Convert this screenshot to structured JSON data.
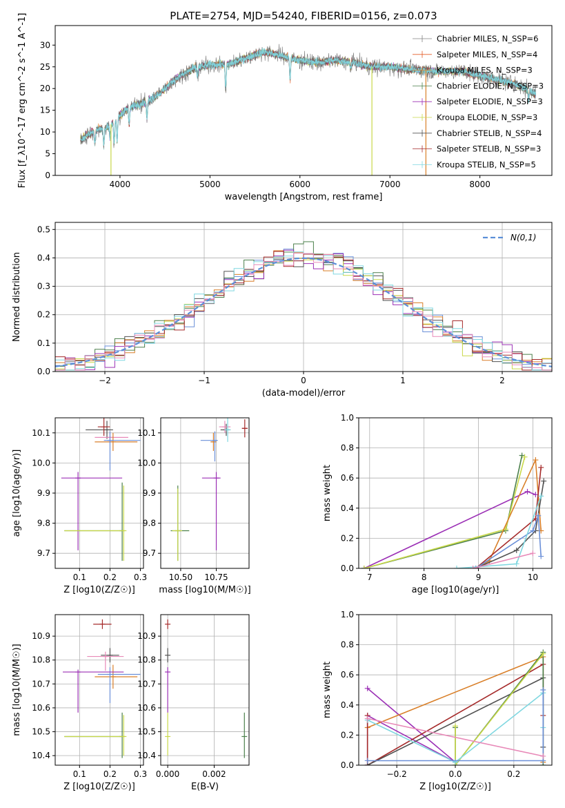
{
  "title": "PLATE=2754, MJD=54240, FIBERID=0156, z=0.073",
  "colors": [
    "#1f77b4",
    "#e35a24",
    "#d97f28",
    "#4a7f4a",
    "#9b2fb5",
    "#d4e050",
    "#505050",
    "#a52a2a",
    "#7fd7e0",
    "#e889b8",
    "#2a8f2a",
    "#6a8fd8"
  ],
  "chart_data": [
    {
      "id": "spectrum",
      "type": "line",
      "xlabel": "wavelength [Angstrom, rest frame]",
      "ylabel": "Flux [f_λ10^-17 erg cm^-2 s^-1 A^-1]",
      "xlim": [
        3280,
        8800
      ],
      "ylim": [
        0,
        34.5
      ],
      "xticks": [
        4000,
        5000,
        6000,
        7000,
        8000
      ],
      "yticks": [
        0,
        5,
        10,
        15,
        20,
        25,
        30
      ],
      "continuum": [
        [
          3550,
          8
        ],
        [
          3650,
          9.5
        ],
        [
          3750,
          10.5
        ],
        [
          3850,
          11
        ],
        [
          3950,
          12.5
        ],
        [
          4050,
          15
        ],
        [
          4150,
          16
        ],
        [
          4300,
          17
        ],
        [
          4450,
          19
        ],
        [
          4600,
          22
        ],
        [
          4800,
          24.5
        ],
        [
          5000,
          25.5
        ],
        [
          5200,
          25.5
        ],
        [
          5400,
          27
        ],
        [
          5600,
          28.5
        ],
        [
          5800,
          27.5
        ],
        [
          6000,
          26.5
        ],
        [
          6200,
          26
        ],
        [
          6400,
          26.5
        ],
        [
          6600,
          26
        ],
        [
          6800,
          25
        ],
        [
          7000,
          25
        ],
        [
          7200,
          24.5
        ],
        [
          7500,
          24
        ],
        [
          7800,
          24
        ],
        [
          8100,
          22.5
        ],
        [
          8400,
          21
        ],
        [
          8600,
          19
        ]
      ],
      "dips": [
        [
          3720,
          3
        ],
        [
          3820,
          4
        ],
        [
          3890,
          3
        ],
        [
          3935,
          5
        ],
        [
          3968,
          5
        ],
        [
          4102,
          4
        ],
        [
          4300,
          4
        ],
        [
          4861,
          2
        ],
        [
          5175,
          6
        ],
        [
          5890,
          5
        ],
        [
          6563,
          1.5
        ],
        [
          8542,
          2
        ]
      ],
      "noise": 1.6,
      "model_noise": 0.9,
      "legend": [
        {
          "label": "Chabrier MILES, N_SSP=6",
          "color": "#808080"
        },
        {
          "label": "Salpeter MILES, N_SSP=4",
          "color": "#e35a24"
        },
        {
          "label": "Kroupa MILES, N_SSP=3",
          "color": "#d97f28"
        },
        {
          "label": "Chabrier ELODIE, N_SSP=3",
          "color": "#4a7f4a"
        },
        {
          "label": "Salpeter ELODIE, N_SSP=3",
          "color": "#9b2fb5"
        },
        {
          "label": "Kroupa ELODIE, N_SSP=3",
          "color": "#c8d848"
        },
        {
          "label": "Chabrier STELIB, N_SSP=4",
          "color": "#505050"
        },
        {
          "label": "Salpeter STELIB, N_SSP=3",
          "color": "#a52a2a"
        },
        {
          "label": "Kroupa STELIB, N_SSP=5",
          "color": "#7fd7e0"
        }
      ],
      "vlines": [
        [
          3900,
          "#c8d848"
        ],
        [
          6800,
          "#c8d848"
        ],
        [
          7400,
          "#d97f28"
        ]
      ]
    },
    {
      "id": "residuals",
      "type": "line",
      "xlabel": "(data-model)/error",
      "ylabel": "Normed distribution",
      "xlim": [
        -2.5,
        2.5
      ],
      "ylim": [
        0,
        0.525
      ],
      "xticks": [
        -2,
        -1,
        0,
        1,
        2
      ],
      "yticks": [
        0.0,
        0.1,
        0.2,
        0.3,
        0.4,
        0.5
      ],
      "legend": [
        {
          "label": "N(0,1)",
          "color": "#5b8fd8"
        }
      ],
      "bin_width": 0.1,
      "hist_colors": [
        "#6a8fd8",
        "#d97f28",
        "#4a7f4a",
        "#9b2fb5",
        "#c8d848",
        "#505050",
        "#a52a2a",
        "#7fd7e0",
        "#e889b8"
      ]
    },
    {
      "id": "age-vs-Z",
      "type": "scatter",
      "xlabel": "Z [log10(Z/Z☉)]",
      "ylabel": "age [log10(age/yr)]",
      "xlim": [
        0.02,
        0.31
      ],
      "ylim": [
        9.65,
        10.15
      ],
      "xticks": [
        0.1,
        0.2,
        0.3
      ],
      "yticks": [
        9.7,
        9.8,
        9.9,
        10.0,
        10.1
      ],
      "points": [
        {
          "x": 0.19,
          "y": 10.11,
          "xerr": [
            0.07,
            0.02
          ],
          "yerr": [
            0.03,
            0.03
          ],
          "color": "#505050"
        },
        {
          "x": 0.18,
          "y": 10.12,
          "xerr": [
            0.02,
            0.02
          ],
          "yerr": [
            0.03,
            0.03
          ],
          "color": "#a52a2a"
        },
        {
          "x": 0.2,
          "y": 10.085,
          "xerr": [
            0.05,
            0.06
          ],
          "yerr": [
            0.02,
            0.02
          ],
          "color": "#e889b8"
        },
        {
          "x": 0.21,
          "y": 10.07,
          "xerr": [
            0.06,
            0.08
          ],
          "yerr": [
            0.03,
            0.03
          ],
          "color": "#d97f28"
        },
        {
          "x": 0.2,
          "y": 10.075,
          "xerr": [
            0.02,
            0.1
          ],
          "yerr": [
            0.1,
            0.03
          ],
          "color": "#6a8fd8"
        },
        {
          "x": 0.095,
          "y": 9.95,
          "xerr": [
            0.055,
            0.145
          ],
          "yerr": [
            0.24,
            0.02
          ],
          "color": "#9b2fb5"
        },
        {
          "x": 0.24,
          "y": 9.775,
          "xerr": [
            0.19,
            0.0
          ],
          "yerr": [
            0.1,
            0.16
          ],
          "color": "#4a7f4a"
        },
        {
          "x": 0.245,
          "y": 9.775,
          "xerr": [
            0.195,
            0.0
          ],
          "yerr": [
            0.1,
            0.15
          ],
          "color": "#c8d848"
        }
      ]
    },
    {
      "id": "age-vs-mass",
      "type": "scatter",
      "xlabel": "mass [log10(M/M☉)]",
      "ylabel": "",
      "xlim": [
        10.36,
        10.98
      ],
      "ylim": [
        9.65,
        10.15
      ],
      "xticks": [
        10.5,
        10.75
      ],
      "yticks": [
        9.7,
        9.8,
        9.9,
        10.0,
        10.1
      ],
      "points": [
        {
          "x": 10.82,
          "y": 10.11,
          "xerr": [
            0.04,
            0.03
          ],
          "yerr": [
            0.02,
            0.02
          ],
          "color": "#505050"
        },
        {
          "x": 10.95,
          "y": 10.115,
          "xerr": [
            0.02,
            0.02
          ],
          "yerr": [
            0.03,
            0.03
          ],
          "color": "#a52a2a"
        },
        {
          "x": 10.81,
          "y": 10.12,
          "xerr": [
            0.04,
            0.04
          ],
          "yerr": [
            0.02,
            0.02
          ],
          "color": "#e889b8"
        },
        {
          "x": 10.73,
          "y": 10.07,
          "xerr": [
            0.02,
            0.02
          ],
          "yerr": [
            0.03,
            0.03
          ],
          "color": "#d97f28"
        },
        {
          "x": 10.74,
          "y": 10.075,
          "xerr": [
            0.1,
            0.02
          ],
          "yerr": [
            0.07,
            0.03
          ],
          "color": "#6a8fd8"
        },
        {
          "x": 10.75,
          "y": 9.95,
          "xerr": [
            0.1,
            0.03
          ],
          "yerr": [
            0.24,
            0.02
          ],
          "color": "#9b2fb5"
        },
        {
          "x": 10.48,
          "y": 9.775,
          "xerr": [
            0.05,
            0.08
          ],
          "yerr": [
            0.1,
            0.15
          ],
          "color": "#4a7f4a"
        },
        {
          "x": 10.48,
          "y": 9.775,
          "xerr": [
            0.04,
            0.03
          ],
          "yerr": [
            0.1,
            0.14
          ],
          "color": "#c8d848"
        },
        {
          "x": 10.83,
          "y": 10.11,
          "xerr": [
            0.02,
            0.02
          ],
          "yerr": [
            0.04,
            0.04
          ],
          "color": "#7fd7e0"
        }
      ]
    },
    {
      "id": "mass-weight-vs-age",
      "type": "line",
      "xlabel": "age  [log10(age/yr)]",
      "ylabel": "mass weight",
      "xlim": [
        6.8,
        10.35
      ],
      "ylim": [
        0,
        1.0
      ],
      "xticks": [
        7,
        8,
        9,
        10
      ],
      "yticks": [
        0.0,
        0.2,
        0.4,
        0.6,
        0.8,
        1.0
      ],
      "series": [
        {
          "color": "#9b2fb5",
          "points": [
            [
              6.9,
              0
            ],
            [
              9.9,
              0.51
            ],
            [
              10.05,
              0.49
            ]
          ]
        },
        {
          "color": "#4a7f4a",
          "points": [
            [
              6.9,
              0
            ],
            [
              9.5,
              0.25
            ],
            [
              9.8,
              0.75
            ]
          ]
        },
        {
          "color": "#c8d848",
          "points": [
            [
              6.9,
              0
            ],
            [
              9.5,
              0.26
            ],
            [
              9.85,
              0.74
            ]
          ]
        },
        {
          "color": "#d97f28",
          "points": [
            [
              8.95,
              0
            ],
            [
              9.2,
              0.05
            ],
            [
              10.05,
              0.72
            ],
            [
              10.15,
              0.25
            ]
          ]
        },
        {
          "color": "#a52a2a",
          "points": [
            [
              8.95,
              0
            ],
            [
              10.05,
              0.33
            ],
            [
              10.15,
              0.67
            ]
          ]
        },
        {
          "color": "#505050",
          "points": [
            [
              8.95,
              0
            ],
            [
              9.7,
              0.12
            ],
            [
              10.05,
              0.25
            ],
            [
              10.2,
              0.58
            ]
          ]
        },
        {
          "color": "#6a8fd8",
          "points": [
            [
              8.95,
              0
            ],
            [
              10.0,
              0.25
            ],
            [
              10.1,
              0.35
            ],
            [
              10.15,
              0.08
            ]
          ]
        },
        {
          "color": "#7fd7e0",
          "points": [
            [
              8.6,
              0
            ],
            [
              9.7,
              0.03
            ],
            [
              10.15,
              0.48
            ]
          ]
        },
        {
          "color": "#e889b8",
          "points": [
            [
              8.9,
              0
            ],
            [
              10.0,
              0.1
            ]
          ]
        }
      ]
    },
    {
      "id": "mass-vs-Z",
      "type": "scatter",
      "xlabel": "Z [log10(Z/Z☉)]",
      "ylabel": "mass [log10(M/M☉)]",
      "xlim": [
        0.02,
        0.31
      ],
      "ylim": [
        10.36,
        10.99
      ],
      "xticks": [
        0.1,
        0.2,
        0.3
      ],
      "yticks": [
        10.4,
        10.5,
        10.6,
        10.7,
        10.8,
        10.9
      ],
      "points": [
        {
          "x": 0.175,
          "y": 10.95,
          "xerr": [
            0.03,
            0.03
          ],
          "yerr": [
            0.02,
            0.02
          ],
          "color": "#a52a2a"
        },
        {
          "x": 0.2,
          "y": 10.82,
          "xerr": [
            0.03,
            0.03
          ],
          "yerr": [
            0.03,
            0.03
          ],
          "color": "#505050"
        },
        {
          "x": 0.185,
          "y": 10.815,
          "xerr": [
            0.06,
            0.06
          ],
          "yerr": [
            0.06,
            0.02
          ],
          "color": "#e889b8"
        },
        {
          "x": 0.21,
          "y": 10.73,
          "xerr": [
            0.06,
            0.08
          ],
          "yerr": [
            0.05,
            0.05
          ],
          "color": "#d97f28"
        },
        {
          "x": 0.2,
          "y": 10.74,
          "xerr": [
            0.04,
            0.1
          ],
          "yerr": [
            0.12,
            0.03
          ],
          "color": "#6a8fd8"
        },
        {
          "x": 0.095,
          "y": 10.75,
          "xerr": [
            0.05,
            0.15
          ],
          "yerr": [
            0.17,
            0.01
          ],
          "color": "#9b2fb5"
        },
        {
          "x": 0.24,
          "y": 10.48,
          "xerr": [
            0.19,
            0.0
          ],
          "yerr": [
            0.09,
            0.1
          ],
          "color": "#4a7f4a"
        },
        {
          "x": 0.245,
          "y": 10.48,
          "xerr": [
            0.195,
            0.0
          ],
          "yerr": [
            0.08,
            0.09
          ],
          "color": "#c8d848"
        }
      ]
    },
    {
      "id": "mass-vs-EBV",
      "type": "scatter",
      "xlabel": "E(B-V)",
      "ylabel": "",
      "xlim": [
        -0.0003,
        0.0035
      ],
      "ylim": [
        10.36,
        10.99
      ],
      "xticks": [
        0.0,
        0.002
      ],
      "yticks": [
        10.4,
        10.5,
        10.6,
        10.7,
        10.8,
        10.9
      ],
      "points": [
        {
          "x": 0.0,
          "y": 10.95,
          "xerr": [
            0,
            0
          ],
          "yerr": [
            0.02,
            0.02
          ],
          "color": "#a52a2a"
        },
        {
          "x": 0.0,
          "y": 10.82,
          "xerr": [
            0,
            0
          ],
          "yerr": [
            0.03,
            0.03
          ],
          "color": "#505050"
        },
        {
          "x": 0.0,
          "y": 10.75,
          "xerr": [
            0,
            0
          ],
          "yerr": [
            0.17,
            0.02
          ],
          "color": "#9b2fb5"
        },
        {
          "x": 0.0,
          "y": 10.48,
          "xerr": [
            0,
            0
          ],
          "yerr": [
            0.08,
            0.1
          ],
          "color": "#c8d848"
        },
        {
          "x": 0.0033,
          "y": 10.48,
          "xerr": [
            0,
            0
          ],
          "yerr": [
            0.09,
            0.1
          ],
          "color": "#4a7f4a"
        }
      ]
    },
    {
      "id": "mass-weight-vs-Z",
      "type": "line",
      "xlabel": "Z [log10(Z/Z☉)]",
      "ylabel": "mass weight",
      "xlim": [
        -0.33,
        0.33
      ],
      "ylim": [
        0,
        1.0
      ],
      "xticks": [
        -0.2,
        0.0,
        0.2
      ],
      "yticks": [
        0.0,
        0.2,
        0.4,
        0.6,
        0.8,
        1.0
      ],
      "series": [
        {
          "color": "#9b2fb5",
          "points": [
            [
              -0.3,
              0.51
            ],
            [
              0.0,
              0.02
            ],
            [
              -0.3,
              0.33
            ],
            [
              -0.3,
              0.0
            ]
          ]
        },
        {
          "color": "#d97f28",
          "points": [
            [
              -0.3,
              0.25
            ],
            [
              0.3,
              0.72
            ],
            [
              0.3,
              0.02
            ]
          ]
        },
        {
          "color": "#a52a2a",
          "points": [
            [
              -0.3,
              0.33
            ],
            [
              -0.3,
              0.0
            ],
            [
              0.3,
              0.67
            ],
            [
              0.3,
              0.33
            ]
          ]
        },
        {
          "color": "#505050",
          "points": [
            [
              -0.3,
              0.0
            ],
            [
              0.3,
              0.58
            ],
            [
              0.3,
              0.12
            ]
          ]
        },
        {
          "color": "#4a7f4a",
          "points": [
            [
              0.0,
              0.25
            ],
            [
              0.0,
              0.0
            ],
            [
              0.3,
              0.75
            ],
            [
              0.3,
              0.0
            ]
          ]
        },
        {
          "color": "#c8d848",
          "points": [
            [
              0.0,
              0.26
            ],
            [
              0.0,
              0.0
            ],
            [
              0.3,
              0.74
            ]
          ]
        },
        {
          "color": "#7fd7e0",
          "points": [
            [
              -0.3,
              0.3
            ],
            [
              0.0,
              0.02
            ],
            [
              0.3,
              0.48
            ],
            [
              0.3,
              0.25
            ]
          ]
        },
        {
          "color": "#6a8fd8",
          "points": [
            [
              -0.3,
              0.03
            ],
            [
              0.3,
              0.03
            ],
            [
              0.3,
              0.5
            ]
          ]
        },
        {
          "color": "#e889b8",
          "points": [
            [
              -0.3,
              0.31
            ],
            [
              0.3,
              0.06
            ]
          ]
        }
      ]
    }
  ]
}
